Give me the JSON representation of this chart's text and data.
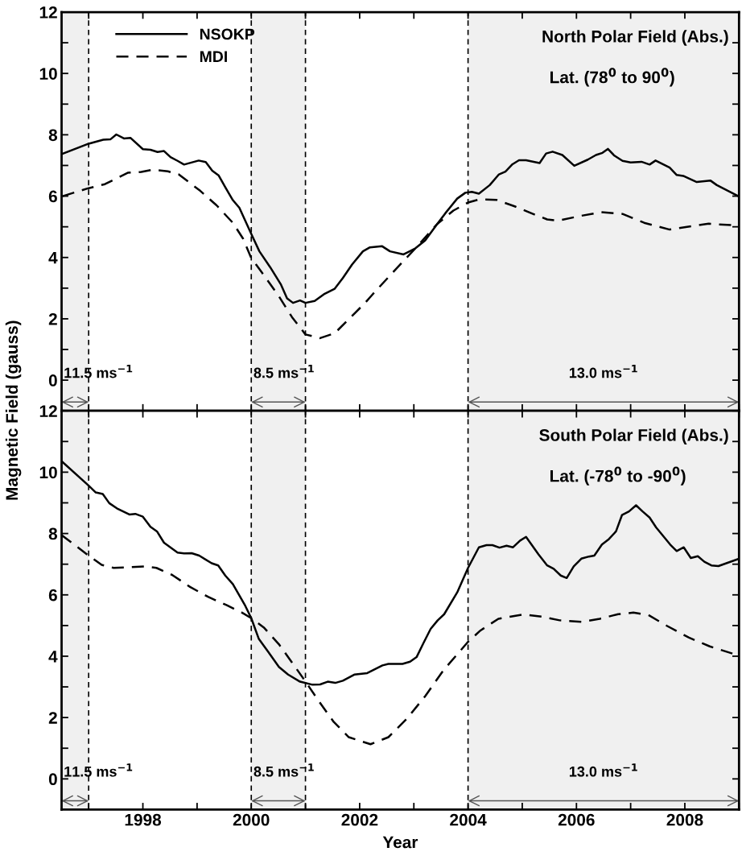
{
  "chart_data": [
    {
      "type": "line",
      "title": "North Polar Field (Abs.)",
      "subtitle": "Lat. (78$^{0}$ to 90$^{0}$)",
      "ylabel": "Magnetic Field (gauss)",
      "xlim": [
        1996.5,
        2009
      ],
      "ylim": [
        -1,
        12
      ],
      "xticks": [
        {
          "value": 1997,
          "label": null
        },
        {
          "value": 1998,
          "label": null
        },
        {
          "value": 1999,
          "label": null
        },
        {
          "value": 2000,
          "label": null
        },
        {
          "value": 2001,
          "label": null
        },
        {
          "value": 2002,
          "label": null
        },
        {
          "value": 2003,
          "label": null
        },
        {
          "value": 2004,
          "label": null
        },
        {
          "value": 2005,
          "label": null
        },
        {
          "value": 2006,
          "label": null
        },
        {
          "value": 2007,
          "label": null
        },
        {
          "value": 2008,
          "label": null
        },
        {
          "value": 2009,
          "label": null
        }
      ],
      "yticks": [
        0,
        {
          "value": 1,
          "label": null
        },
        2,
        {
          "value": 3,
          "label": null
        },
        4,
        {
          "value": 5,
          "label": null
        },
        6,
        {
          "value": 7,
          "label": null
        },
        8,
        {
          "value": 9,
          "label": null
        },
        10,
        {
          "value": 11,
          "label": null
        },
        12
      ],
      "tick_labels": "y",
      "legend": "top left",
      "grid": false,
      "series": [
        {
          "name": "NSOKP",
          "color": "#000000",
          "line_style": "solid",
          "x": [
            1996.52,
            1997.0,
            1997.27,
            1997.4,
            1997.51,
            1997.65,
            1997.77,
            1998.0,
            1998.14,
            1998.27,
            1998.39,
            1998.51,
            1998.64,
            1998.76,
            1999.03,
            1999.16,
            1999.28,
            1999.4,
            1999.53,
            1999.66,
            1999.78,
            2000.0,
            2000.15,
            2000.35,
            2000.55,
            2000.66,
            2000.77,
            2000.9,
            2001.0,
            2001.17,
            2001.34,
            2001.54,
            2001.69,
            2001.86,
            2002.06,
            2002.19,
            2002.41,
            2002.56,
            2002.81,
            2003.03,
            2003.21,
            2003.43,
            2003.58,
            2003.8,
            2003.95,
            2004.07,
            2004.2,
            2004.4,
            2004.57,
            2004.69,
            2004.82,
            2004.94,
            2005.07,
            2005.32,
            2005.44,
            2005.56,
            2005.74,
            2005.96,
            2006.21,
            2006.36,
            2006.48,
            2006.58,
            2006.7,
            2006.85,
            2007.0,
            2007.2,
            2007.35,
            2007.46,
            2007.72,
            2007.85,
            2007.97,
            2008.22,
            2008.47,
            2008.59,
            2009.0
          ],
          "values": [
            7.38,
            7.71,
            7.84,
            7.85,
            8.01,
            7.88,
            7.9,
            7.53,
            7.51,
            7.44,
            7.47,
            7.27,
            7.15,
            7.03,
            7.16,
            7.11,
            6.83,
            6.67,
            6.26,
            5.87,
            5.62,
            4.77,
            4.2,
            3.68,
            3.11,
            2.67,
            2.52,
            2.6,
            2.52,
            2.58,
            2.8,
            2.98,
            3.33,
            3.77,
            4.2,
            4.33,
            4.37,
            4.2,
            4.1,
            4.3,
            4.56,
            5.09,
            5.44,
            5.92,
            6.11,
            6.14,
            6.08,
            6.36,
            6.71,
            6.8,
            7.04,
            7.17,
            7.17,
            7.08,
            7.39,
            7.45,
            7.34,
            6.99,
            7.19,
            7.34,
            7.41,
            7.54,
            7.32,
            7.15,
            7.1,
            7.12,
            7.03,
            7.16,
            6.93,
            6.69,
            6.66,
            6.46,
            6.51,
            6.36,
            5.99
          ]
        },
        {
          "name": "MDI",
          "color": "#000000",
          "line_style": "dashed",
          "x": [
            1996.52,
            1997.0,
            1997.3,
            1997.72,
            1997.97,
            1998.17,
            1998.46,
            1998.66,
            1998.86,
            1999.06,
            1999.36,
            1999.66,
            1999.85,
            2000.0,
            2000.2,
            2000.5,
            2000.75,
            2001.0,
            2001.27,
            2001.54,
            2001.84,
            2002.09,
            2002.24,
            2002.59,
            2003.03,
            2003.43,
            2003.73,
            2004.0,
            2004.22,
            2004.52,
            2004.87,
            2005.17,
            2005.46,
            2005.66,
            2006.06,
            2006.46,
            2006.85,
            2007.25,
            2007.72,
            2008.04,
            2008.44,
            2009.0
          ],
          "values": [
            6.0,
            6.26,
            6.39,
            6.76,
            6.79,
            6.86,
            6.81,
            6.71,
            6.44,
            6.17,
            5.7,
            5.13,
            4.61,
            3.98,
            3.5,
            2.76,
            2.06,
            1.49,
            1.37,
            1.53,
            2.06,
            2.5,
            2.8,
            3.47,
            4.3,
            5.09,
            5.53,
            5.79,
            5.9,
            5.88,
            5.66,
            5.44,
            5.24,
            5.2,
            5.35,
            5.48,
            5.42,
            5.13,
            4.91,
            5.0,
            5.1,
            5.04
          ]
        }
      ],
      "ref_lines": [
        {
          "axis": "x",
          "value": 1997,
          "line_style": "dashed",
          "color": "#000000"
        },
        {
          "axis": "x",
          "value": 2000,
          "line_style": "dashed",
          "color": "#000000"
        },
        {
          "axis": "x",
          "value": 2001,
          "line_style": "dashed",
          "color": "#000000"
        },
        {
          "axis": "x",
          "value": 2004,
          "line_style": "dashed",
          "color": "#000000"
        }
      ],
      "bands": [
        {
          "axis": "x",
          "from": 1996.5,
          "to": 1997,
          "label": "11.5 ms$^{−1}$"
        },
        {
          "axis": "x",
          "from": 2000,
          "to": 2001,
          "label": "8.5 ms$^{−1}$"
        },
        {
          "axis": "x",
          "from": 2004,
          "to": 2009,
          "label": "13.0 ms$^{−1}$"
        }
      ]
    },
    {
      "type": "line",
      "title": "South Polar Field (Abs.)",
      "subtitle": "Lat. (-78$^{0}$ to -90$^{0}$)",
      "xlabel": "Year",
      "xlim": [
        1996.5,
        2009
      ],
      "ylim": [
        -1,
        12
      ],
      "xticks": [
        {
          "value": 1997,
          "label": null
        },
        1998,
        {
          "value": 1999,
          "label": null
        },
        2000,
        {
          "value": 2001,
          "label": null
        },
        2002,
        {
          "value": 2003,
          "label": null
        },
        2004,
        {
          "value": 2005,
          "label": null
        },
        2006,
        {
          "value": 2007,
          "label": null
        },
        2008,
        {
          "value": 2009,
          "label": null
        }
      ],
      "yticks": [
        0,
        {
          "value": 1,
          "label": null
        },
        2,
        {
          "value": 3,
          "label": null
        },
        4,
        {
          "value": 5,
          "label": null
        },
        6,
        {
          "value": 7,
          "label": null
        },
        8,
        {
          "value": 9,
          "label": null
        },
        10,
        {
          "value": 11,
          "label": null
        },
        12
      ],
      "grid": false,
      "series": [
        {
          "color": "#000000",
          "line_style": "solid",
          "x": [
            1996.5,
            1997.0,
            1997.13,
            1997.26,
            1997.38,
            1997.52,
            1997.75,
            1997.86,
            1998.0,
            1998.14,
            1998.26,
            1998.39,
            1998.64,
            1998.76,
            1998.9,
            1999.04,
            1999.27,
            1999.39,
            1999.52,
            1999.66,
            1999.89,
            2000.0,
            2000.14,
            2000.31,
            2000.51,
            2000.68,
            2000.9,
            2001.13,
            2001.27,
            2001.41,
            2001.55,
            2001.69,
            2001.9,
            2002.14,
            2002.42,
            2002.53,
            2002.79,
            2002.93,
            2003.05,
            2003.18,
            2003.31,
            2003.44,
            2003.56,
            2003.8,
            2004.0,
            2004.2,
            2004.34,
            2004.45,
            2004.58,
            2004.71,
            2004.83,
            2004.96,
            2005.07,
            2005.3,
            2005.46,
            2005.58,
            2005.71,
            2005.82,
            2005.95,
            2006.09,
            2006.23,
            2006.33,
            2006.47,
            2006.6,
            2006.73,
            2006.84,
            2006.97,
            2007.1,
            2007.22,
            2007.35,
            2007.47,
            2007.73,
            2007.85,
            2007.98,
            2008.11,
            2008.24,
            2008.36,
            2008.49,
            2008.62,
            2009.0
          ],
          "values": [
            10.36,
            9.56,
            9.34,
            9.29,
            8.99,
            8.82,
            8.62,
            8.64,
            8.55,
            8.22,
            8.07,
            7.7,
            7.38,
            7.35,
            7.36,
            7.28,
            7.03,
            6.96,
            6.63,
            6.35,
            5.64,
            5.24,
            4.56,
            4.15,
            3.65,
            3.4,
            3.17,
            3.07,
            3.08,
            3.17,
            3.13,
            3.2,
            3.4,
            3.45,
            3.7,
            3.75,
            3.75,
            3.82,
            3.97,
            4.44,
            4.89,
            5.17,
            5.37,
            6.08,
            6.88,
            7.55,
            7.62,
            7.62,
            7.54,
            7.6,
            7.55,
            7.77,
            7.89,
            7.32,
            6.96,
            6.85,
            6.63,
            6.55,
            6.93,
            7.18,
            7.25,
            7.28,
            7.64,
            7.82,
            8.07,
            8.6,
            8.72,
            8.92,
            8.72,
            8.52,
            8.2,
            7.64,
            7.43,
            7.55,
            7.2,
            7.26,
            7.08,
            6.96,
            6.94,
            7.18
          ]
        },
        {
          "color": "#000000",
          "line_style": "dashed",
          "x": [
            1996.5,
            1997.0,
            1997.24,
            1997.46,
            1997.75,
            1998.03,
            1998.25,
            1998.54,
            1998.87,
            1999.21,
            1999.55,
            1999.83,
            2000.0,
            2000.23,
            2000.51,
            2000.79,
            2001.01,
            2001.24,
            2001.52,
            2001.8,
            2002.2,
            2002.53,
            2002.87,
            2003.21,
            2003.55,
            2004.0,
            2004.23,
            2004.56,
            2005.02,
            2005.36,
            2005.69,
            2006.09,
            2006.43,
            2006.77,
            2007.05,
            2007.33,
            2007.67,
            2008.07,
            2008.46,
            2009.0
          ],
          "values": [
            7.95,
            7.28,
            6.98,
            6.88,
            6.9,
            6.93,
            6.88,
            6.65,
            6.26,
            5.93,
            5.66,
            5.42,
            5.24,
            4.94,
            4.39,
            3.7,
            3.15,
            2.55,
            1.86,
            1.36,
            1.13,
            1.36,
            1.96,
            2.7,
            3.55,
            4.47,
            4.84,
            5.22,
            5.36,
            5.29,
            5.17,
            5.12,
            5.22,
            5.37,
            5.42,
            5.34,
            4.99,
            4.61,
            4.32,
            4.02
          ]
        }
      ],
      "ref_lines": [
        {
          "axis": "x",
          "value": 1997,
          "line_style": "dashed",
          "color": "#000000"
        },
        {
          "axis": "x",
          "value": 2000,
          "line_style": "dashed",
          "color": "#000000"
        },
        {
          "axis": "x",
          "value": 2001,
          "line_style": "dashed",
          "color": "#000000"
        },
        {
          "axis": "x",
          "value": 2004,
          "line_style": "dashed",
          "color": "#000000"
        }
      ],
      "bands": [
        {
          "axis": "x",
          "from": 1996.5,
          "to": 1997,
          "label": "11.5 ms$^{−1}$"
        },
        {
          "axis": "x",
          "from": 2000,
          "to": 2001,
          "label": "8.5 ms$^{−1}$"
        },
        {
          "axis": "x",
          "from": 2004,
          "to": 2009,
          "label": "13.0 ms$^{−1}$"
        }
      ]
    }
  ]
}
